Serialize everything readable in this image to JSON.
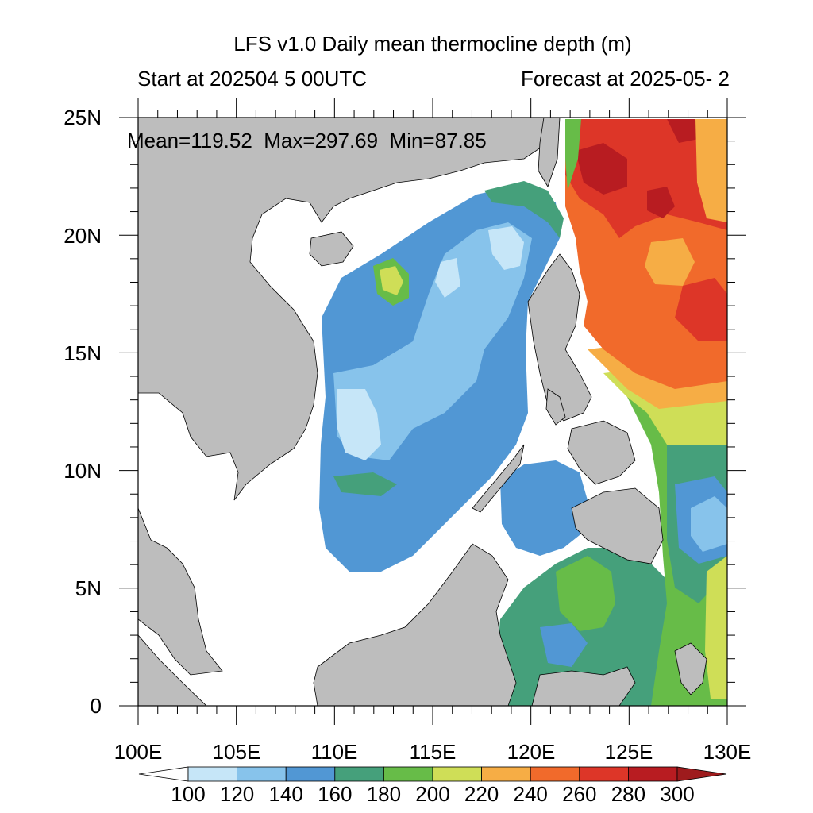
{
  "title": "LFS v1.0 Daily mean thermocline depth (m)",
  "subtitle_left": "Start at 202504 5 00UTC",
  "subtitle_right": "Forecast at 2025-05- 2",
  "stats": "Mean=119.52  Max=297.69  Min=87.85",
  "lat_labels": [
    "25N",
    "20N",
    "15N",
    "10N",
    "5N",
    "0"
  ],
  "lon_labels": [
    "100E",
    "105E",
    "110E",
    "115E",
    "120E",
    "125E",
    "130E"
  ],
  "colorbar": {
    "labels": [
      "100",
      "120",
      "140",
      "160",
      "180",
      "200",
      "220",
      "240",
      "260",
      "280",
      "300"
    ],
    "colors": [
      "#c6e6f8",
      "#87c3eb",
      "#5197d4",
      "#45a07b",
      "#67bc48",
      "#cfde57",
      "#f6ad45",
      "#f16a2b",
      "#dd3628",
      "#b81c21"
    ],
    "under_color": "#ffffff",
    "over_color": "#9e1b1d"
  },
  "land_color": "#bdbdbd",
  "chart_data": {
    "type": "heatmap",
    "title": "LFS v1.0 Daily mean thermocline depth (m)",
    "x_range": [
      100,
      130
    ],
    "y_range": [
      0,
      25
    ],
    "stats": {
      "mean": 119.52,
      "max": 297.69,
      "min": 87.85
    },
    "levels": [
      100,
      120,
      140,
      160,
      180,
      200,
      220,
      240,
      260,
      280,
      300
    ]
  }
}
